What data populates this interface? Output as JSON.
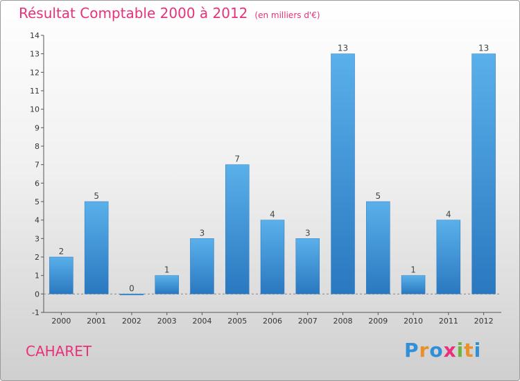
{
  "chart_data": {
    "type": "bar",
    "title": "Résultat Comptable 2000 à 2012",
    "subtitle": "(en milliers d'€)",
    "categories": [
      "2000",
      "2001",
      "2002",
      "2003",
      "2004",
      "2005",
      "2006",
      "2007",
      "2008",
      "2009",
      "2010",
      "2011",
      "2012"
    ],
    "values": [
      2,
      5,
      0,
      1,
      3,
      7,
      4,
      3,
      13,
      5,
      1,
      4,
      13
    ],
    "value_labels": [
      "2",
      "5",
      "0",
      "1",
      "3",
      "7",
      "4",
      "3",
      "13",
      "5",
      "1",
      "4",
      "13"
    ],
    "y_ticks": [
      "-1",
      "0",
      "1",
      "2",
      "3",
      "4",
      "5",
      "6",
      "7",
      "8",
      "9",
      "10",
      "11",
      "12",
      "13",
      "14"
    ],
    "ylim": [
      -1,
      14
    ],
    "xlabel": "",
    "ylabel": "",
    "bar_color": "#3c8fd6",
    "bar_color_light": "#5ab0ea",
    "bar_color_dark": "#2a78c0"
  },
  "town": "CAHARET",
  "logo": {
    "letters": [
      "P",
      "r",
      "o",
      "x",
      "i",
      "t",
      "i"
    ],
    "colors": [
      "#2f8fd8",
      "#e8912a",
      "#2f8fd8",
      "#e8317a",
      "#6cb43f",
      "#e8912a",
      "#2f8fd8"
    ]
  },
  "colors": {
    "accent": "#e8317a"
  }
}
